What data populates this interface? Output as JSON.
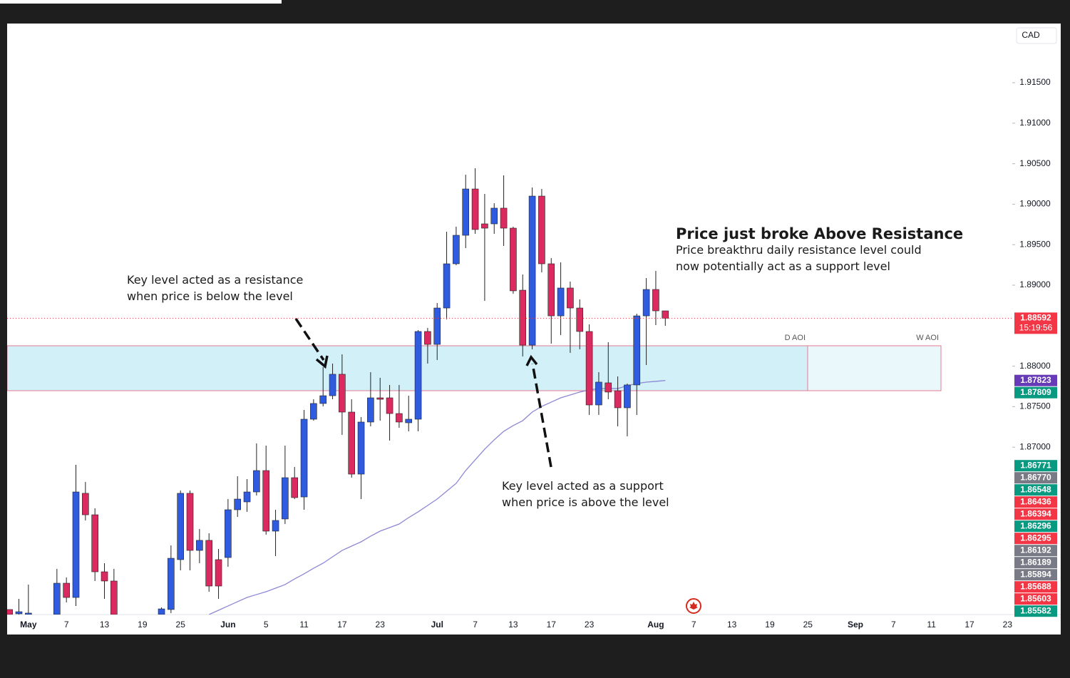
{
  "chart_data": {
    "type": "candlestick",
    "currency": "CAD",
    "categories": [
      null,
      null,
      "May",
      null,
      null,
      null,
      "7",
      null,
      null,
      null,
      "13",
      null,
      null,
      null,
      "19",
      null,
      null,
      null,
      "25",
      null,
      null,
      null,
      null,
      "Jun",
      null,
      null,
      null,
      "5",
      null,
      null,
      null,
      "11",
      null,
      null,
      null,
      "17",
      null,
      null,
      null,
      "23",
      null,
      null,
      null,
      null,
      null,
      "Jul",
      null,
      null,
      null,
      "7",
      null,
      null,
      null,
      "13",
      null,
      null,
      null,
      "17",
      null,
      null,
      null,
      "23",
      null,
      null,
      null,
      null,
      null,
      null,
      "Aug",
      null,
      null,
      null,
      "7",
      null,
      null,
      null,
      "13",
      null,
      null,
      null,
      "19",
      null,
      null,
      null,
      "25",
      null,
      null,
      null,
      null,
      "Sep",
      null,
      null,
      null,
      "7",
      null,
      null,
      null,
      "11",
      null,
      null,
      null,
      "17",
      null,
      null,
      null,
      "23"
    ],
    "open": [
      1.84995,
      1.84942,
      1.84933,
      null,
      null,
      1.84933,
      1.8532,
      1.85144,
      1.8643,
      1.86165,
      1.85461,
      1.85347,
      null,
      null,
      null,
      null,
      1.84933,
      1.84995,
      1.85611,
      1.8643,
      1.85725,
      1.85849,
      1.85611,
      1.85637,
      1.86227,
      1.86324,
      1.86447,
      1.86711,
      1.85963,
      1.86113,
      1.86623,
      1.86385,
      1.87345,
      1.87539,
      1.87635,
      1.879,
      1.87433,
      1.86667,
      1.8731,
      1.87609,
      1.87609,
      1.87415,
      1.87301,
      1.87345,
      1.88428,
      1.88269,
      1.88718,
      1.89264,
      1.89616,
      1.90188,
      1.89757,
      1.89757,
      1.89951,
      1.89704,
      1.88938,
      1.8826,
      1.901,
      1.89264,
      1.88621,
      1.88965,
      1.88718,
      1.88428,
      1.87521,
      1.87794,
      1.87697,
      1.87486,
      1.87768,
      1.88621,
      1.88947,
      1.88683,
      null,
      null,
      null,
      null,
      null,
      null,
      null,
      null,
      null,
      null,
      null,
      null,
      null,
      null,
      null,
      null,
      null,
      null,
      null,
      null,
      null,
      null,
      null,
      null,
      null,
      null,
      null,
      null,
      null,
      null,
      null,
      null,
      null,
      null,
      null,
      null
    ],
    "high": [
      1.84995,
      1.85127,
      1.85303,
      null,
      null,
      1.85497,
      1.85391,
      1.86782,
      1.8657,
      1.86245,
      1.85567,
      1.85497,
      null,
      null,
      null,
      null,
      1.85021,
      1.85787,
      1.86465,
      1.86465,
      1.85989,
      1.85937,
      1.85743,
      1.86359,
      1.86641,
      1.86606,
      1.87046,
      1.87019,
      1.86227,
      1.87019,
      1.86755,
      1.87459,
      1.87591,
      1.87988,
      1.88032,
      1.88146,
      1.87591,
      1.87371,
      1.87926,
      1.87856,
      1.87768,
      1.87768,
      1.87635,
      1.88445,
      1.88472,
      1.8878,
      1.8966,
      1.89722,
      1.90364,
      1.90444,
      1.90127,
      1.90012,
      1.90356,
      1.89722,
      1.89132,
      1.90206,
      1.90188,
      1.89334,
      1.89282,
      1.89044,
      1.88824,
      1.88516,
      1.87926,
      1.88296,
      1.87873,
      1.87785,
      1.88648,
      1.89088,
      1.89176,
      1.88683,
      null,
      null,
      null,
      null,
      null,
      null,
      null,
      null,
      null,
      null,
      null,
      null,
      null,
      null,
      null,
      null,
      null,
      null,
      null,
      null,
      null,
      null,
      null,
      null,
      null,
      null,
      null,
      null,
      null,
      null,
      null,
      null,
      null,
      null,
      null,
      null
    ],
    "low": [
      1.84933,
      1.84933,
      1.84933,
      null,
      null,
      1.84933,
      1.85083,
      1.85039,
      1.86095,
      1.85347,
      1.85127,
      1.84933,
      null,
      null,
      null,
      null,
      1.84933,
      1.84951,
      1.85479,
      1.85479,
      1.85567,
      1.85215,
      1.85127,
      1.85523,
      1.86139,
      1.86201,
      1.86403,
      1.85919,
      1.85655,
      1.86051,
      1.86359,
      1.86227,
      1.87327,
      1.87503,
      1.87591,
      1.87151,
      1.86623,
      1.86359,
      1.87257,
      1.87327,
      1.87081,
      1.87239,
      1.87195,
      1.87195,
      1.88032,
      1.88076,
      1.88577,
      1.89246,
      1.89458,
      1.89634,
      1.88806,
      1.89634,
      1.89484,
      1.88894,
      1.8812,
      1.88208,
      1.89158,
      1.88278,
      1.88384,
      1.88164,
      1.88208,
      1.87398,
      1.87398,
      1.87591,
      1.87257,
      1.87134,
      1.87398,
      1.88014,
      1.88507,
      1.88498,
      null,
      null,
      null,
      null,
      null,
      null,
      null,
      null,
      null,
      null,
      null,
      null,
      null,
      null,
      null,
      null,
      null,
      null,
      null,
      null,
      null,
      null,
      null,
      null,
      null,
      null,
      null,
      null,
      null,
      null,
      null,
      null,
      null,
      null,
      null,
      null
    ],
    "close": [
      1.84933,
      1.84968,
      1.84951,
      null,
      null,
      1.8532,
      1.85144,
      1.86447,
      1.86165,
      1.85461,
      1.85347,
      1.84933,
      null,
      null,
      null,
      null,
      1.85003,
      1.85628,
      1.8643,
      1.85725,
      1.85849,
      1.85285,
      1.85285,
      1.86227,
      1.86359,
      1.86447,
      1.86711,
      1.85963,
      1.86095,
      1.86623,
      1.86377,
      1.87345,
      1.87539,
      1.87635,
      1.879,
      1.87433,
      1.86667,
      1.8731,
      1.87609,
      1.87591,
      1.87415,
      1.8731,
      1.87345,
      1.88428,
      1.88269,
      1.88718,
      1.89264,
      1.89616,
      1.90188,
      1.89687,
      1.89704,
      1.89951,
      1.89704,
      1.8893,
      1.8826,
      1.901,
      1.89264,
      1.88621,
      1.88965,
      1.88718,
      1.88428,
      1.87521,
      1.87803,
      1.8768,
      1.87486,
      1.87768,
      1.88621,
      1.88947,
      1.88683,
      1.88592,
      null,
      null,
      null,
      null,
      null,
      null,
      null,
      null,
      null,
      null,
      null,
      null,
      null,
      null,
      null,
      null,
      null,
      null,
      null,
      null,
      null,
      null,
      null,
      null,
      null,
      null,
      null,
      null,
      null,
      null,
      null,
      null,
      null,
      null,
      null,
      null
    ],
    "up_color": "#2f5be0",
    "down_color": "#db2a5f",
    "moving_average": {
      "color": "#8c88d6",
      "values": [
        null,
        null,
        null,
        null,
        null,
        null,
        null,
        null,
        null,
        null,
        null,
        null,
        null,
        null,
        null,
        null,
        null,
        null,
        null,
        null,
        null,
        1.84933,
        1.84986,
        1.85039,
        1.85092,
        1.85144,
        1.8518,
        1.85215,
        1.85259,
        1.85303,
        1.85373,
        1.85435,
        1.85505,
        1.85567,
        1.85646,
        1.85725,
        1.85778,
        1.85831,
        1.85901,
        1.85963,
        1.86007,
        1.86051,
        1.8613,
        1.86201,
        1.8628,
        1.86359,
        1.86456,
        1.86553,
        1.86711,
        1.86843,
        1.86975,
        1.8709,
        1.87195,
        1.87266,
        1.87327,
        1.87433,
        1.87503,
        1.87556,
        1.87609,
        1.87644,
        1.8768,
        1.87706,
        1.87724,
        1.87724,
        1.87724,
        1.87759,
        1.87785,
        1.87803,
        1.87812,
        1.87823,
        null,
        null,
        null,
        null,
        null,
        null,
        null,
        null,
        null,
        null,
        null,
        null,
        null,
        null,
        null,
        null,
        null,
        null,
        null,
        null,
        null,
        null,
        null,
        null,
        null,
        null,
        null,
        null,
        null,
        null,
        null,
        null,
        null,
        null,
        null,
        null
      ]
    },
    "zone": {
      "top": 1.88252,
      "bottom": 1.87697,
      "color": "#d2f0f7",
      "labels": [
        "D AOI",
        "W AOI"
      ]
    },
    "ylim": [
      1.84933,
      1.92213
    ],
    "yticks": [
      {
        "value": 1.87,
        "label": "1.87000"
      },
      {
        "value": 1.875,
        "label": "1.87500"
      },
      {
        "value": 1.88,
        "label": "1.88000"
      },
      {
        "value": 1.89,
        "label": "1.89000"
      },
      {
        "value": 1.895,
        "label": "1.89500"
      },
      {
        "value": 1.9,
        "label": "1.90000"
      },
      {
        "value": 1.905,
        "label": "1.90500"
      },
      {
        "value": 1.91,
        "label": "1.91000"
      },
      {
        "value": 1.915,
        "label": "1.91500"
      }
    ],
    "price_labels": [
      {
        "value": 1.88592,
        "label": "1.88592",
        "sublabel": "15:19:56",
        "color": "#f23645"
      },
      {
        "value": 1.87823,
        "label": "1.87823",
        "color": "#673ab7"
      },
      {
        "value": 1.87809,
        "label": "1.87809",
        "color": "#089981"
      },
      {
        "value": 1.86771,
        "label": "1.86771",
        "color": "#089981"
      },
      {
        "value": 1.8677,
        "label": "1.86770",
        "color": "#787b86"
      },
      {
        "value": 1.86548,
        "label": "1.86548",
        "color": "#089981"
      },
      {
        "value": 1.86436,
        "label": "1.86436",
        "color": "#f23645"
      },
      {
        "value": 1.86394,
        "label": "1.86394",
        "color": "#f23645"
      },
      {
        "value": 1.86296,
        "label": "1.86296",
        "color": "#089981"
      },
      {
        "value": 1.86295,
        "label": "1.86295",
        "color": "#f23645"
      },
      {
        "value": 1.86192,
        "label": "1.86192",
        "color": "#787b86"
      },
      {
        "value": 1.86189,
        "label": "1.86189",
        "color": "#787b86"
      },
      {
        "value": 1.85894,
        "label": "1.85894",
        "color": "#787b86"
      },
      {
        "value": 1.85688,
        "label": "1.85688",
        "color": "#f23645"
      },
      {
        "value": 1.85603,
        "label": "1.85603",
        "color": "#f23645"
      },
      {
        "value": 1.85582,
        "label": "1.85582",
        "color": "#089981"
      }
    ],
    "annotations": [
      {
        "lines": [
          "Key level acted as a resistance",
          "when price is below the level"
        ]
      },
      {
        "lines": [
          "Key level acted as a support",
          "when price is above the level"
        ]
      },
      {
        "title": "Price just broke Above Resistance",
        "lines": [
          "Price breakthru daily resistance level could",
          "now potentially act as a support level"
        ]
      }
    ]
  }
}
